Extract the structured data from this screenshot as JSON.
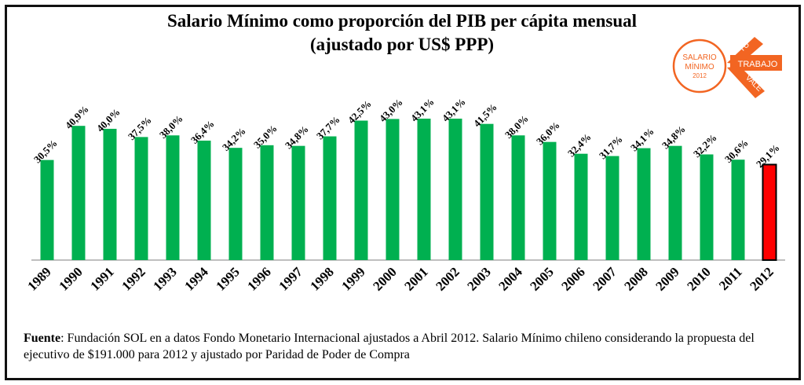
{
  "title": "Salario Mínimo como proporción del PIB per cápita mensual",
  "subtitle": "(ajustado por US$ PPP)",
  "logo": {
    "line1": "SALARIO",
    "line2": "MÍNIMO",
    "line3": "2012",
    "word_tu": "TU",
    "word_trabajo": "TRABAJO",
    "word_vale": "VALE",
    "accent_color": "#f26522"
  },
  "source": {
    "label": "Fuente",
    "text": ": Fundación SOL en a datos Fondo Monetario Internacional ajustados a Abril 2012. Salario Mínimo chileno considerando la propuesta del ejecutivo de $191.000 para 2012 y ajustado por Paridad de Poder de Compra"
  },
  "chart_data": {
    "type": "bar",
    "title": "Salario Mínimo como proporción del PIB per cápita mensual",
    "subtitle": "(ajustado por US$ PPP)",
    "categories": [
      "1989",
      "1990",
      "1991",
      "1992",
      "1993",
      "1994",
      "1995",
      "1996",
      "1997",
      "1998",
      "1999",
      "2000",
      "2001",
      "2002",
      "2003",
      "2004",
      "2005",
      "2006",
      "2007",
      "2008",
      "2009",
      "2010",
      "2011",
      "2012"
    ],
    "values": [
      30.5,
      40.9,
      40.0,
      37.5,
      38.0,
      36.4,
      34.2,
      35.0,
      34.8,
      37.7,
      42.5,
      43.0,
      43.1,
      43.1,
      41.5,
      38.0,
      36.0,
      32.4,
      31.7,
      34.1,
      34.8,
      32.2,
      30.6,
      29.1
    ],
    "data_labels": [
      "30,5%",
      "40,9%",
      "40,0%",
      "37,5%",
      "38,0%",
      "36,4%",
      "34,2%",
      "35,0%",
      "34,8%",
      "37,7%",
      "42,5%",
      "43,0%",
      "43,1%",
      "43,1%",
      "41,5%",
      "38,0%",
      "36,0%",
      "32,4%",
      "31,7%",
      "34,1%",
      "34,8%",
      "32,2%",
      "30,6%",
      "29,1%"
    ],
    "ylim": [
      0,
      43.1
    ],
    "grid": false,
    "bar_color": "#00b050",
    "highlight_color": "#ff0000",
    "highlight_index": 23
  }
}
